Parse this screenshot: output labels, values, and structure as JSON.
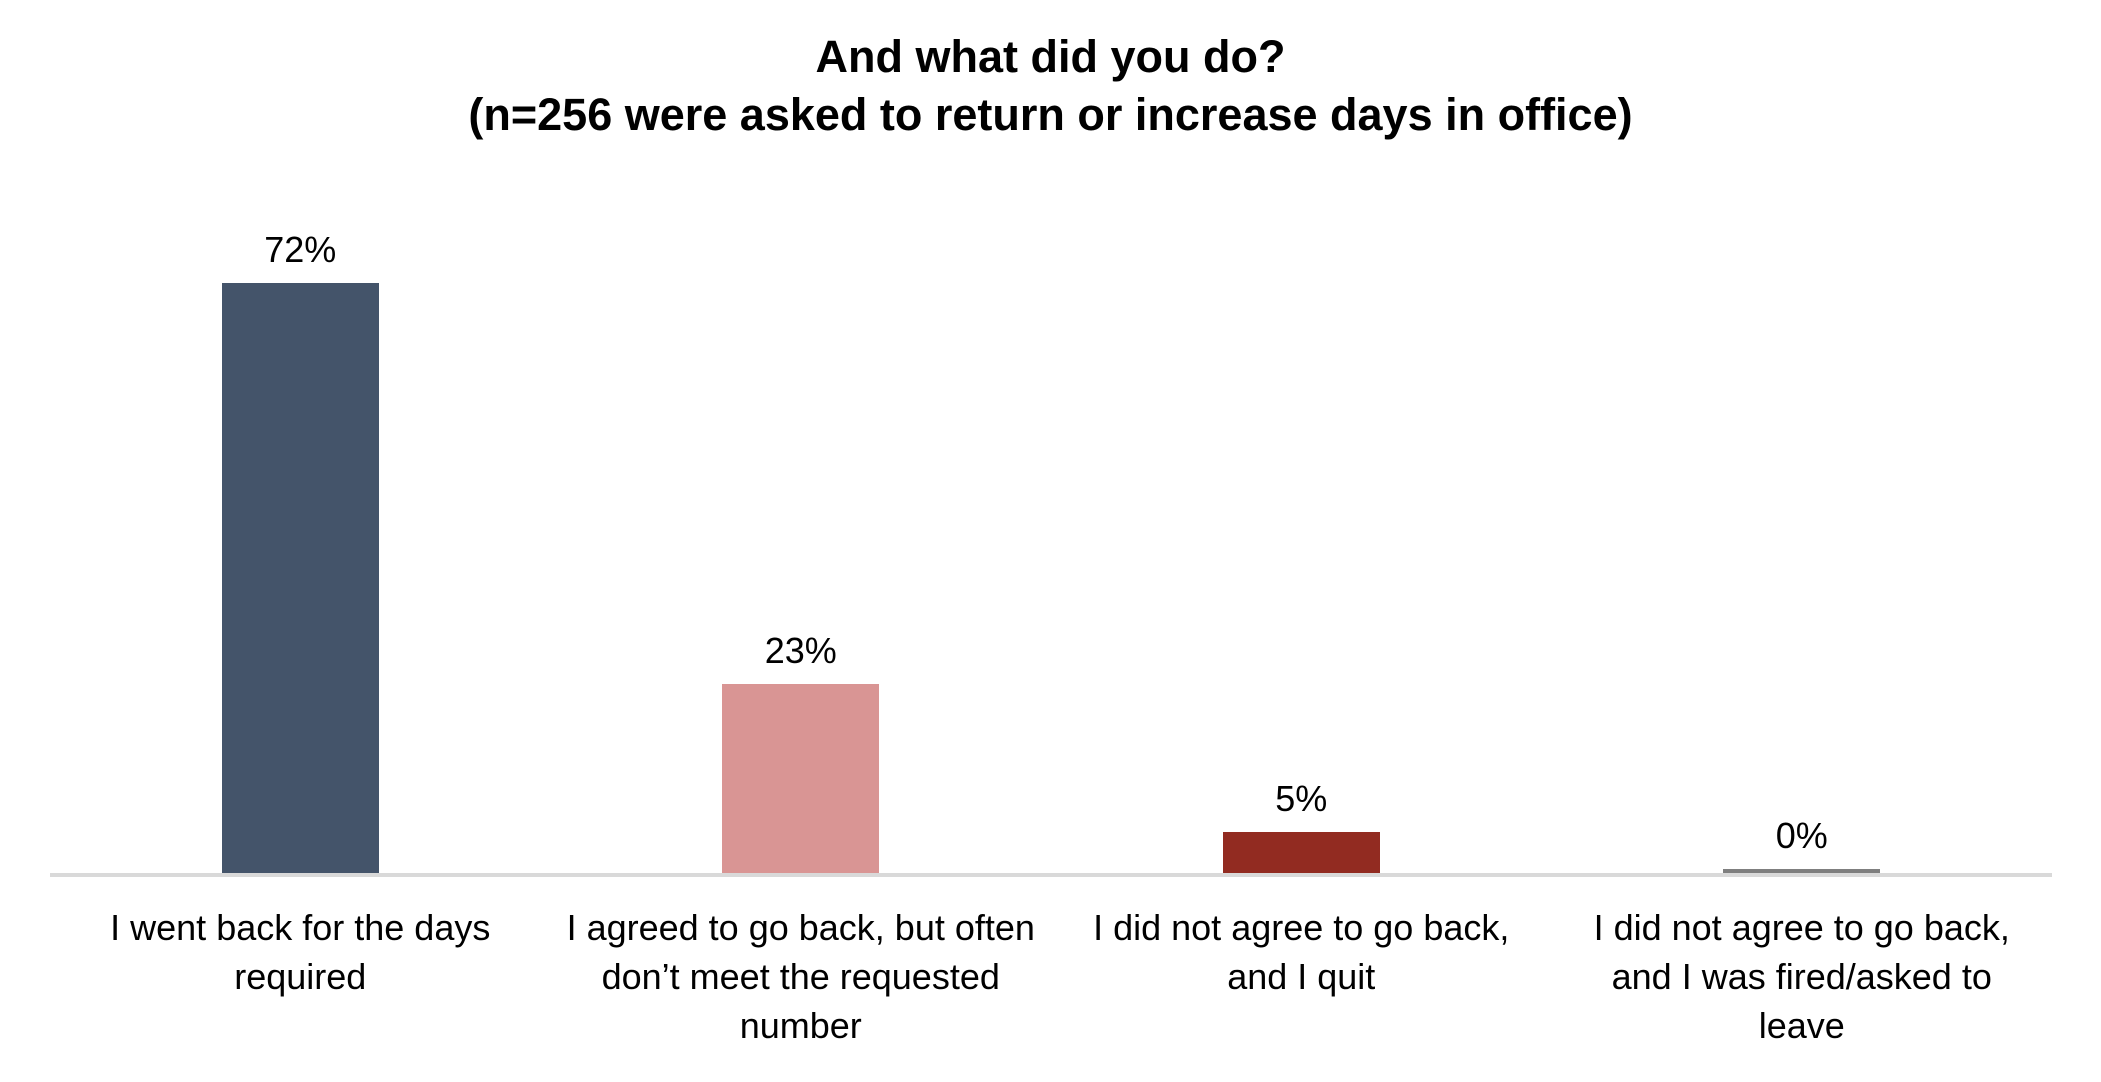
{
  "chart_data": {
    "type": "bar",
    "title": "And what did you do?",
    "subtitle": "(n=256 were asked to return or increase days in office)",
    "categories": [
      "I went back for the days required",
      "I agreed to go back, but often don’t meet the requested number",
      "I did not agree to go back, and I quit",
      "I did not agree to go back, and I was fired/asked to leave"
    ],
    "category_lines": [
      [
        "I went back for the days",
        "required"
      ],
      [
        "I agreed to go back, but often",
        "don’t meet the requested",
        "number"
      ],
      [
        "I did not agree to go back,",
        "and I quit"
      ],
      [
        "I did not agree to go back,",
        "and I was fired/asked to",
        "leave"
      ]
    ],
    "values": [
      72,
      23,
      5,
      0
    ],
    "value_labels": [
      "72%",
      "23%",
      "5%",
      "0%"
    ],
    "bar_colors": [
      "#44546A",
      "#D99594",
      "#922B21",
      "#7F7F7F"
    ],
    "axis_color": "#D9D9D9",
    "zero_bar_color": "#7F7F7F",
    "ylabel": "",
    "xlabel": "",
    "ylim": [
      0,
      88
    ],
    "grid": false,
    "legend": false
  }
}
